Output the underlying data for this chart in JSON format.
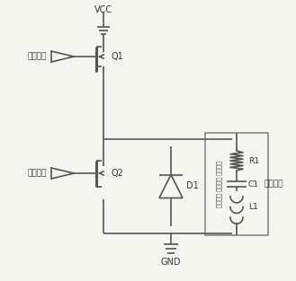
{
  "bg_color": "#f5f5f0",
  "line_color": "#555555",
  "box_color": "#888888",
  "lw": 1.2,
  "fig_width": 3.29,
  "fig_height": 3.13,
  "labels": {
    "VCC": "VCC",
    "GND": "GND",
    "Q1": "Q1",
    "Q2": "Q2",
    "D1": "D1",
    "R1": "R1",
    "C1": "C1",
    "L1": "L1",
    "drive1": "驱动信号",
    "drive2": "驱动信号",
    "load": "等效负载",
    "vert_text": "滤波电容 参考电容 滤波电感"
  }
}
